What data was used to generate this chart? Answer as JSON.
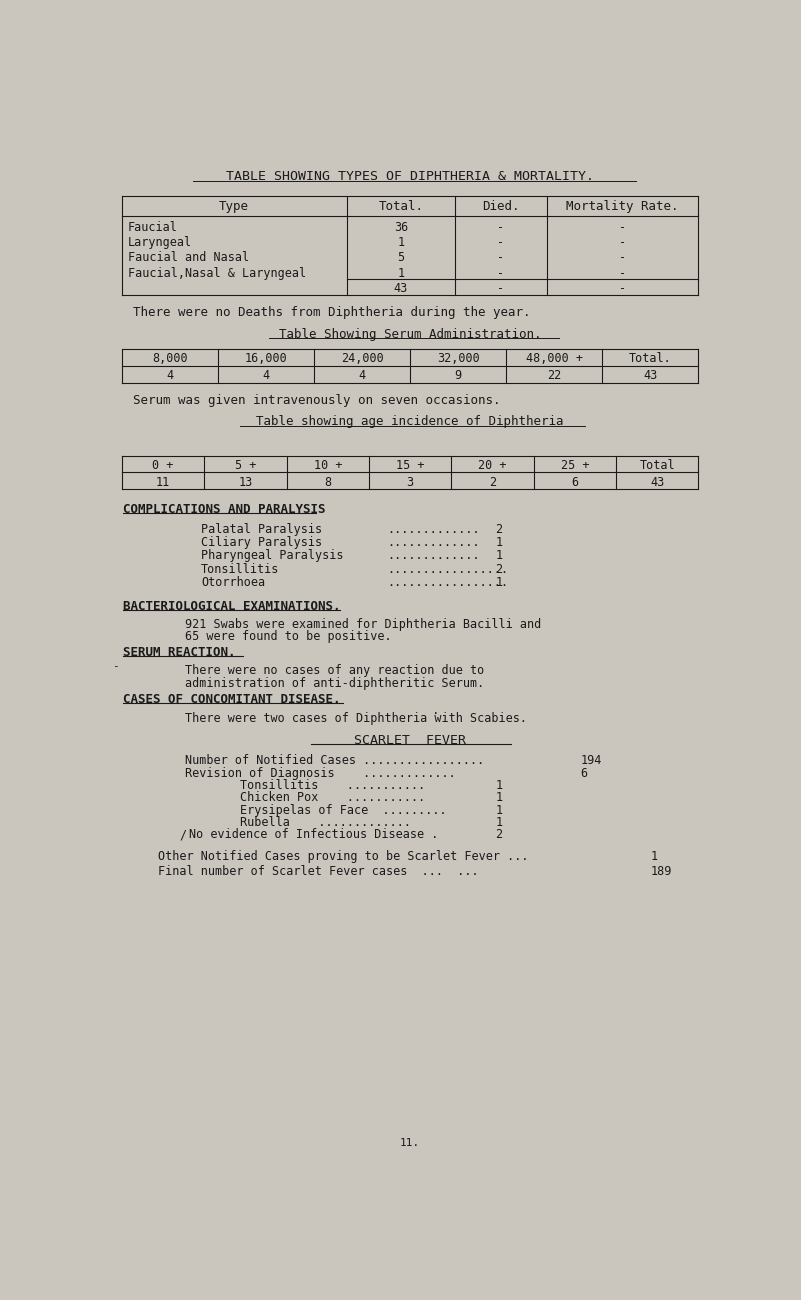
{
  "bg_color": "#cac6be",
  "text_color": "#1a1a1a",
  "title": "TABLE SHOWING TYPES OF DIPHTHERIA & MORTALITY.",
  "table1_headers": [
    "Type",
    "Total.",
    "Died.",
    "Mortality Rate."
  ],
  "table1_rows": [
    [
      "Faucial",
      "36",
      "-",
      "-"
    ],
    [
      "Laryngeal",
      "1",
      "-",
      "-"
    ],
    [
      "Faucial and Nasal",
      "5",
      "-",
      "-"
    ],
    [
      "Faucial,Nasal & Laryngeal",
      "1",
      "-",
      "-"
    ]
  ],
  "table1_total_row": [
    "",
    "43",
    "-",
    "-"
  ],
  "note1": "There were no Deaths from Diphtheria during the year.",
  "subtitle2": "Table Showing Serum Administration.",
  "table2_headers": [
    "8,000",
    "16,000",
    "24,000",
    "32,000",
    "48,000 +",
    "Total."
  ],
  "table2_row": [
    "4",
    "4",
    "4",
    "9",
    "22",
    "43"
  ],
  "note2": "Serum was given intravenously on seven occasions.",
  "subtitle3": "Table showing age incidence of Diphtheria",
  "table3_headers": [
    "0 +",
    "5 +",
    "10 +",
    "15 +",
    "20 +",
    "25 +",
    "Total"
  ],
  "table3_row": [
    "11",
    "13",
    "8",
    "3",
    "2",
    "6",
    "43"
  ],
  "section4_title": "COMPLICATIONS AND PARALYSIS",
  "complications": [
    [
      "Palatal Paralysis",
      ".............",
      "2"
    ],
    [
      "Ciliary Paralysis",
      ".............",
      "1"
    ],
    [
      "Pharyngeal Paralysis",
      ".............",
      "1"
    ],
    [
      "Tonsillitis",
      ".................",
      "2"
    ],
    [
      "Otorrhoea",
      ".................",
      "1"
    ]
  ],
  "section5_title": "BACTERIOLOGICAL EXAMINATIONS.",
  "section5_text1": "921 Swabs were examined for Diphtheria Bacilli and",
  "section5_text2": "65 were found to be positive.",
  "section6_title": "SERUM REACTION.",
  "section6_text1": "There were no cases of any reaction due to",
  "section6_text2": "administration of anti-diphtheritic Serum.",
  "section7_title": "CASES OF CONCOMITANT DISEASE.",
  "section7_text": "There were two cases of Diphtheria with Scabies.",
  "section8_title": "SCARLET  FEVER",
  "scarlet_line1_label": "Number of Notified Cases .................",
  "scarlet_line1_val": "194",
  "scarlet_line2_label": "Revision of Diagnosis    .............",
  "scarlet_line2_val": "6",
  "scarlet_sub": [
    [
      "Tonsillitis    ...........",
      "1"
    ],
    [
      "Chicken Pox    ...........",
      "1"
    ],
    [
      "Erysipelas of Face  .........",
      "1"
    ],
    [
      "Rubella    .............",
      "1"
    ],
    [
      "No evidence of Infectious Disease .",
      "2"
    ]
  ],
  "scarlet_other_label": "Other Notified Cases proving to be Scarlet Fever ...",
  "scarlet_other_val": "1",
  "scarlet_final_label": "Final number of Scarlet Fever cases  ...  ...",
  "scarlet_final_val": "189",
  "footer": "11."
}
